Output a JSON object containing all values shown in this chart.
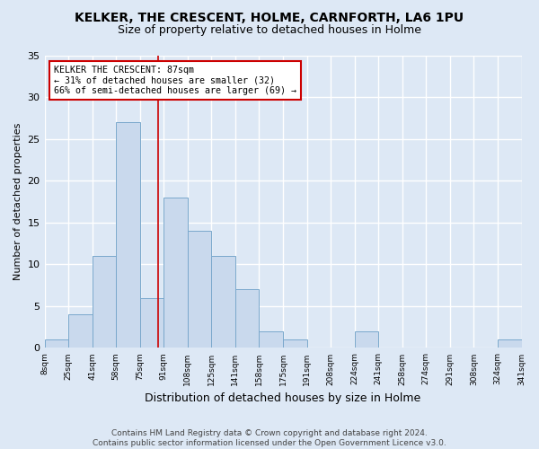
{
  "title": "KELKER, THE CRESCENT, HOLME, CARNFORTH, LA6 1PU",
  "subtitle": "Size of property relative to detached houses in Holme",
  "xlabel": "Distribution of detached houses by size in Holme",
  "ylabel": "Number of detached properties",
  "bin_labels": [
    "8sqm",
    "25sqm",
    "41sqm",
    "58sqm",
    "75sqm",
    "91sqm",
    "108sqm",
    "125sqm",
    "141sqm",
    "158sqm",
    "175sqm",
    "191sqm",
    "208sqm",
    "224sqm",
    "241sqm",
    "258sqm",
    "274sqm",
    "291sqm",
    "308sqm",
    "324sqm",
    "341sqm"
  ],
  "bar_values": [
    1,
    4,
    11,
    27,
    6,
    18,
    14,
    11,
    7,
    2,
    1,
    0,
    0,
    2,
    0,
    0,
    0,
    0,
    0,
    1
  ],
  "bar_color": "#c9d9ed",
  "bar_edge_color": "#7aa8cc",
  "background_color": "#dde8f5",
  "grid_color": "#ffffff",
  "property_label": "KELKER THE CRESCENT: 87sqm",
  "annotation_line1": "← 31% of detached houses are smaller (32)",
  "annotation_line2": "66% of semi-detached houses are larger (69) →",
  "annotation_box_color": "#ffffff",
  "annotation_box_edge_color": "#cc0000",
  "vline_bin_index": 5,
  "vline_color": "#cc0000",
  "ylim": [
    0,
    35
  ],
  "yticks": [
    0,
    5,
    10,
    15,
    20,
    25,
    30,
    35
  ],
  "footnote": "Contains HM Land Registry data © Crown copyright and database right 2024.\nContains public sector information licensed under the Open Government Licence v3.0.",
  "title_fontsize": 10,
  "subtitle_fontsize": 9
}
